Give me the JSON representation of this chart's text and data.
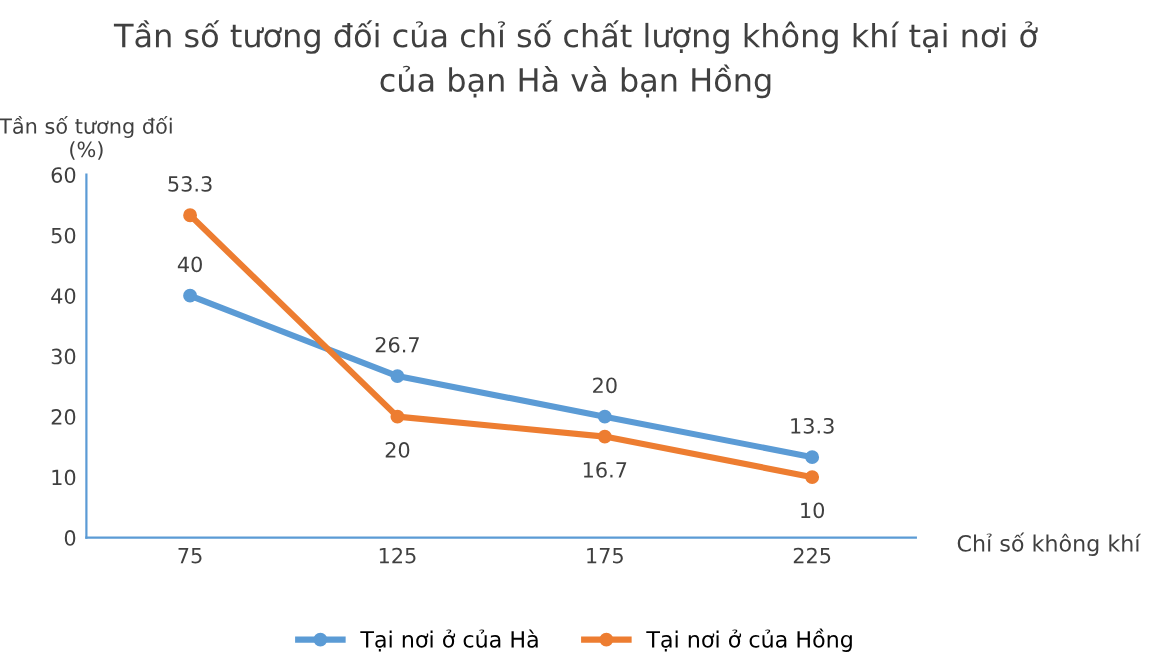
{
  "chart_data": {
    "type": "line",
    "title": "Tần số tương đối của chỉ số chất lượng không khí tại nơi ở\ncủa bạn Hà và bạn Hồng",
    "ylabel": "Tần số tương đối\n(%)",
    "xlabel": "Chỉ số không khí",
    "categories": [
      "75",
      "125",
      "175",
      "225"
    ],
    "series": [
      {
        "name": "Tại nơi ở của Hà",
        "color": "#5b9bd5",
        "values": [
          40,
          26.7,
          20,
          13.3
        ]
      },
      {
        "name": "Tại nơi ở của Hồng",
        "color": "#ed7d31",
        "values": [
          53.3,
          20,
          16.7,
          10
        ]
      }
    ],
    "ylim": [
      0,
      60
    ],
    "yticks": [
      0,
      10,
      20,
      30,
      40,
      50,
      60
    ],
    "grid": false,
    "legend": "bottom",
    "marker": "circle",
    "line_style": "solid",
    "data_labels": true
  }
}
